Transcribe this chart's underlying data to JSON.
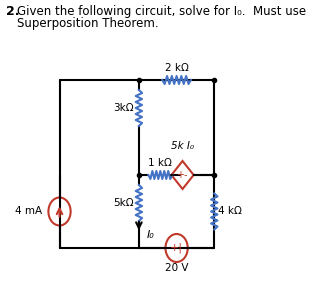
{
  "title_num": "2.",
  "title_text": "Given the following circuit, solve for I₀.  Must use\nSuperposition Theorem.",
  "bg_color": "#ffffff",
  "text_color": "#000000",
  "wire_color": "#000000",
  "resistor_color_blue": "#4472c4",
  "resistor_color_red": "#c0392b",
  "source_color_red": "#c0392b",
  "current_source_label": "4 mA",
  "r1_label": "3kΩ",
  "r2_label": "5kΩ",
  "r3_label": "1 kΩ",
  "r4_label": "2 kΩ",
  "r5_label": "4 kΩ",
  "dep_source_label": "5k I₀",
  "voltage_source_label": "20 V",
  "io_label": "I₀",
  "fig_width": 3.12,
  "fig_height": 2.98,
  "dpi": 100
}
